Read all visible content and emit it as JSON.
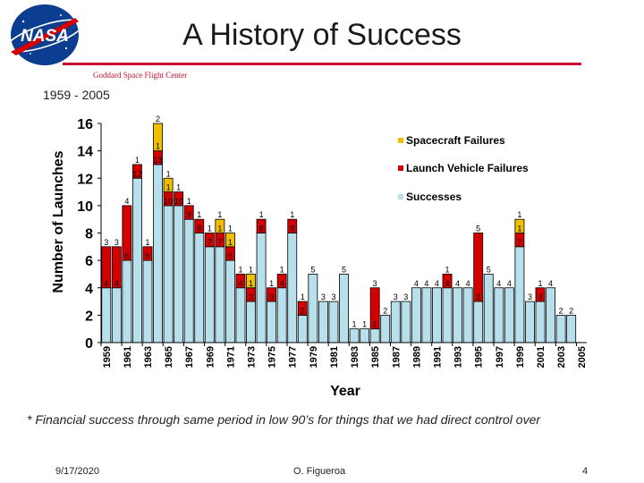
{
  "header": {
    "title": "A History of Success",
    "center": "Goddard Space Flight Center",
    "logo_text": "NASA"
  },
  "date_range": "1959 - 2005",
  "footnote": "* Financial success through same period in low 90’s for things that we had direct control over",
  "footer": {
    "date": "9/17/2020",
    "author": "O. Figueroa",
    "page": "4"
  },
  "colors": {
    "success": "#b7dfec",
    "launch": "#d40000",
    "spacecraft": "#f0c000"
  },
  "chart_data": {
    "type": "bar",
    "stacked": true,
    "title": "",
    "xlabel": "Year",
    "ylabel": "Number of Launches",
    "ylim": [
      0,
      16
    ],
    "yticks": [
      "0",
      "2",
      "4",
      "6",
      "8",
      "10",
      "12",
      "14",
      "16"
    ],
    "year_tick_labels": [
      "1959",
      "1961",
      "1963",
      "1965",
      "1967",
      "1969",
      "1971",
      "1973",
      "1975",
      "1977",
      "1979",
      "1981",
      "1983",
      "1985",
      "1987",
      "1989",
      "1991",
      "1993",
      "1995",
      "1997",
      "1999",
      "2001",
      "2003",
      "2005"
    ],
    "legend": [
      "Spacecraft Failures",
      "Launch Vehicle Failures",
      "Successes"
    ],
    "legend_position": "top-right",
    "years": [
      1959,
      1960,
      1961,
      1962,
      1963,
      1964,
      1965,
      1966,
      1967,
      1968,
      1969,
      1970,
      1971,
      1972,
      1973,
      1974,
      1975,
      1976,
      1977,
      1978,
      1979,
      1980,
      1981,
      1982,
      1983,
      1984,
      1985,
      1986,
      1987,
      1988,
      1989,
      1990,
      1991,
      1992,
      1993,
      1994,
      1995,
      1996,
      1997,
      1998,
      1999,
      2000,
      2001,
      2002,
      2003,
      2004,
      2005
    ],
    "series": [
      {
        "name": "Successes",
        "values": [
          4,
          4,
          6,
          12,
          6,
          13,
          10,
          10,
          9,
          8,
          7,
          7,
          6,
          4,
          3,
          8,
          3,
          4,
          8,
          2,
          5,
          3,
          3,
          5,
          1,
          1,
          1,
          2,
          3,
          3,
          4,
          4,
          4,
          4,
          4,
          4,
          3,
          5,
          4,
          4,
          7,
          3,
          3,
          4,
          2,
          2,
          0
        ]
      },
      {
        "name": "Launch Vehicle Failures",
        "values": [
          3,
          3,
          4,
          1,
          1,
          1,
          1,
          1,
          1,
          1,
          1,
          1,
          1,
          1,
          1,
          1,
          1,
          1,
          1,
          1,
          0,
          0,
          0,
          0,
          0,
          0,
          3,
          0,
          0,
          0,
          0,
          0,
          0,
          1,
          0,
          0,
          5,
          0,
          0,
          0,
          1,
          0,
          1,
          0,
          0,
          0,
          0
        ]
      },
      {
        "name": "Spacecraft Failures",
        "values": [
          0,
          0,
          0,
          0,
          0,
          2,
          1,
          0,
          0,
          0,
          0,
          1,
          1,
          0,
          1,
          0,
          0,
          0,
          0,
          0,
          0,
          0,
          0,
          0,
          0,
          0,
          0,
          0,
          0,
          0,
          0,
          0,
          0,
          0,
          0,
          0,
          0,
          0,
          0,
          0,
          1,
          0,
          0,
          0,
          0,
          0,
          0
        ]
      }
    ],
    "data_labels": {
      "successes": [
        "4",
        "4",
        "6",
        "12",
        "6",
        "13",
        "10",
        "10",
        "9",
        "8",
        "7",
        "7",
        "6",
        "4",
        "3",
        "8",
        "3",
        "4",
        "8",
        "2",
        "5",
        "3",
        "3",
        "5",
        "1",
        "1",
        "1",
        "2",
        "3",
        "3",
        "4",
        "4",
        "4",
        "4",
        "4",
        "4",
        "3",
        "5",
        "4",
        "4",
        "7",
        "3",
        "3",
        "4",
        "2",
        "2",
        ""
      ],
      "launch_failures": [
        "3",
        "3",
        "4",
        "1",
        "1",
        "1",
        "1",
        "1",
        "1",
        "1",
        "1",
        "1",
        "1",
        "1",
        "1",
        "1",
        "1",
        "1",
        "1",
        "1",
        "",
        "",
        "",
        "",
        "",
        "",
        "3",
        "",
        "",
        "",
        "",
        "",
        "",
        "1",
        "",
        "",
        "5",
        "",
        "",
        "",
        "1",
        "",
        "1",
        "",
        "",
        "",
        ""
      ],
      "spacecraft_failures": [
        "",
        "",
        "",
        "",
        "",
        "2",
        "1",
        "",
        "",
        "",
        "",
        "1",
        "1",
        "",
        "1",
        "",
        "",
        "",
        "",
        "",
        "",
        "",
        "",
        "",
        "",
        "",
        "",
        "",
        "",
        "",
        "",
        "",
        "",
        "",
        "",
        "",
        "",
        "",
        "",
        "",
        "1",
        "",
        "",
        "",
        "",
        "",
        ""
      ]
    }
  }
}
